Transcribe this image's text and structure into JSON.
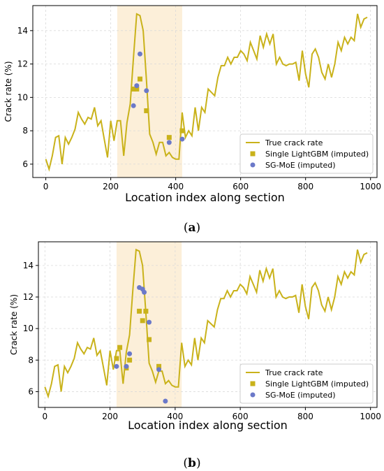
{
  "chart_data": [
    {
      "type": "line",
      "panel": "a",
      "xlabel": "Location index along section",
      "ylabel": "Crack rate (%)",
      "xlim": [
        -40,
        1020
      ],
      "ylim": [
        5.2,
        15.5
      ],
      "xticks": [
        0,
        200,
        400,
        600,
        800,
        1000
      ],
      "yticks": [
        6,
        8,
        10,
        12,
        14
      ],
      "grid": true,
      "legend_position": "lower-right",
      "highlight_region": [
        220,
        420
      ],
      "series": [
        {
          "name": "True crack rate",
          "kind": "line",
          "color": "#c9b21a",
          "x": [
            0,
            10,
            20,
            30,
            40,
            50,
            60,
            70,
            80,
            90,
            100,
            110,
            120,
            130,
            140,
            150,
            160,
            170,
            180,
            190,
            200,
            210,
            220,
            230,
            240,
            250,
            260,
            270,
            280,
            290,
            300,
            310,
            320,
            330,
            340,
            350,
            360,
            370,
            380,
            390,
            400,
            410,
            420,
            430,
            440,
            450,
            460,
            470,
            480,
            490,
            500,
            510,
            520,
            530,
            540,
            550,
            560,
            570,
            580,
            590,
            600,
            610,
            620,
            630,
            640,
            650,
            660,
            670,
            680,
            690,
            700,
            710,
            720,
            730,
            740,
            750,
            760,
            770,
            780,
            790,
            800,
            810,
            820,
            830,
            840,
            850,
            860,
            870,
            880,
            890,
            900,
            910,
            920,
            930,
            940,
            950,
            960,
            970,
            980,
            990
          ],
          "y": [
            6.3,
            5.7,
            6.5,
            7.6,
            7.7,
            6.0,
            7.6,
            7.2,
            7.6,
            8.1,
            9.1,
            8.7,
            8.4,
            8.8,
            8.7,
            9.4,
            8.3,
            8.6,
            7.5,
            6.4,
            8.6,
            7.4,
            8.6,
            8.6,
            6.5,
            8.5,
            9.6,
            12.4,
            15.0,
            14.9,
            14.0,
            11.0,
            7.8,
            7.3,
            6.6,
            7.3,
            7.3,
            6.5,
            6.7,
            6.4,
            6.3,
            6.3,
            9.1,
            7.6,
            8.0,
            7.7,
            9.4,
            8.0,
            9.4,
            9.1,
            10.5,
            10.3,
            10.1,
            11.2,
            11.9,
            11.9,
            12.4,
            12.0,
            12.4,
            12.4,
            12.8,
            12.6,
            12.2,
            13.3,
            12.8,
            12.3,
            13.7,
            13.0,
            13.8,
            13.2,
            13.8,
            12.0,
            12.4,
            12.0,
            11.9,
            12.0,
            12.0,
            12.1,
            11.0,
            12.8,
            11.4,
            10.6,
            12.6,
            12.9,
            12.4,
            11.5,
            11.1,
            12.0,
            11.2,
            12.0,
            13.3,
            12.8,
            13.6,
            13.2,
            13.6,
            13.4,
            15.0,
            14.2,
            14.7,
            14.8
          ]
        },
        {
          "name": "Single LightGBM (imputed)",
          "kind": "scatter",
          "marker": "square",
          "color": "#c9b21a",
          "x": [
            270,
            280,
            290,
            310,
            380,
            420
          ],
          "y": [
            10.5,
            10.5,
            11.1,
            9.2,
            7.6,
            8.0
          ]
        },
        {
          "name": "SG-MoE (imputed)",
          "kind": "scatter",
          "marker": "circle",
          "color": "#6b79c9",
          "x": [
            270,
            280,
            290,
            310,
            380,
            420
          ],
          "y": [
            9.5,
            10.7,
            12.6,
            10.4,
            7.3,
            7.5
          ]
        }
      ],
      "panel_label": "a"
    },
    {
      "type": "line",
      "panel": "b",
      "xlabel": "Location index along section",
      "ylabel": "Crack rate (%)",
      "xlim": [
        -20,
        1020
      ],
      "ylim": [
        5.0,
        15.5
      ],
      "xticks": [
        0,
        200,
        400,
        600,
        800,
        1000
      ],
      "yticks": [
        6,
        8,
        10,
        12,
        14
      ],
      "grid": true,
      "legend_position": "lower-right",
      "highlight_region": [
        220,
        420
      ],
      "series": [
        {
          "name": "True crack rate",
          "kind": "line",
          "color": "#c9b21a",
          "x": [
            0,
            10,
            20,
            30,
            40,
            50,
            60,
            70,
            80,
            90,
            100,
            110,
            120,
            130,
            140,
            150,
            160,
            170,
            180,
            190,
            200,
            210,
            220,
            230,
            240,
            250,
            260,
            270,
            280,
            290,
            300,
            310,
            320,
            330,
            340,
            350,
            360,
            370,
            380,
            390,
            400,
            410,
            420,
            430,
            440,
            450,
            460,
            470,
            480,
            490,
            500,
            510,
            520,
            530,
            540,
            550,
            560,
            570,
            580,
            590,
            600,
            610,
            620,
            630,
            640,
            650,
            660,
            670,
            680,
            690,
            700,
            710,
            720,
            730,
            740,
            750,
            760,
            770,
            780,
            790,
            800,
            810,
            820,
            830,
            840,
            850,
            860,
            870,
            880,
            890,
            900,
            910,
            920,
            930,
            940,
            950,
            960,
            970,
            980,
            990
          ],
          "y": [
            6.3,
            5.7,
            6.5,
            7.6,
            7.7,
            6.0,
            7.6,
            7.2,
            7.6,
            8.1,
            9.1,
            8.7,
            8.4,
            8.8,
            8.7,
            9.4,
            8.3,
            8.6,
            7.5,
            6.4,
            8.6,
            7.4,
            8.6,
            8.6,
            6.5,
            8.5,
            9.6,
            12.4,
            15.0,
            14.9,
            14.0,
            11.0,
            7.8,
            7.3,
            6.6,
            7.3,
            7.3,
            6.5,
            6.7,
            6.4,
            6.3,
            6.3,
            9.1,
            7.6,
            8.0,
            7.7,
            9.4,
            8.0,
            9.4,
            9.1,
            10.5,
            10.3,
            10.1,
            11.2,
            11.9,
            11.9,
            12.4,
            12.0,
            12.4,
            12.4,
            12.8,
            12.6,
            12.2,
            13.3,
            12.8,
            12.3,
            13.7,
            13.0,
            13.8,
            13.2,
            13.8,
            12.0,
            12.4,
            12.0,
            11.9,
            12.0,
            12.0,
            12.1,
            11.0,
            12.8,
            11.4,
            10.6,
            12.6,
            12.9,
            12.4,
            11.5,
            11.1,
            12.0,
            11.2,
            12.0,
            13.3,
            12.8,
            13.6,
            13.2,
            13.6,
            13.4,
            15.0,
            14.2,
            14.7,
            14.8
          ]
        },
        {
          "name": "Single LightGBM (imputed)",
          "kind": "scatter",
          "marker": "square",
          "color": "#c9b21a",
          "x": [
            220,
            230,
            250,
            260,
            290,
            300,
            310,
            320,
            350
          ],
          "y": [
            8.1,
            8.8,
            7.5,
            8.0,
            11.1,
            10.5,
            11.1,
            9.3,
            7.6
          ]
        },
        {
          "name": "SG-MoE (imputed)",
          "kind": "scatter",
          "marker": "circle",
          "color": "#6b79c9",
          "x": [
            220,
            250,
            260,
            290,
            300,
            305,
            320,
            350,
            370
          ],
          "y": [
            7.6,
            7.6,
            8.4,
            12.6,
            12.5,
            12.3,
            10.4,
            7.4,
            5.4
          ]
        }
      ],
      "panel_label": "b"
    }
  ],
  "colors": {
    "line": "#c9b21a",
    "lightgbm": "#c9b21a",
    "sgmoe": "#6b79c9",
    "highlight": "#fcefd9",
    "grid": "#d9d9d9"
  }
}
